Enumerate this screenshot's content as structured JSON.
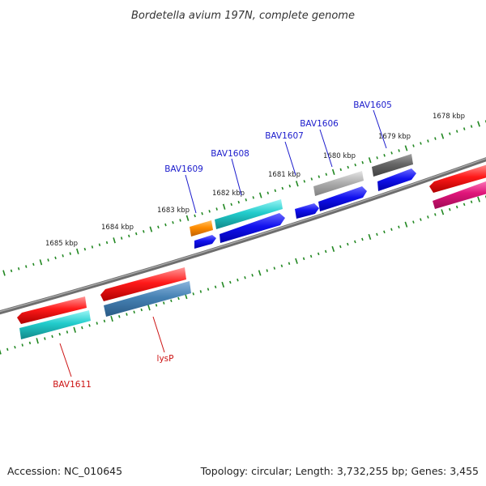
{
  "map": {
    "title": "Bordetella avium 197N, complete genome",
    "accession": "Accession: NC_010645",
    "summary": "Topology: circular; Length: 3,732,255 bp; Genes: 3,455"
  },
  "colors": {
    "backbone": "#7a7a7a",
    "tick": "#228822",
    "forward_label": "#1a1acc",
    "reverse_label": "#cc1111",
    "red": "#ee1111",
    "cyan": "#22cccc",
    "blue": "#1111ee",
    "orange": "#ff8c00",
    "gray": "#aaaaaa",
    "darkgray": "#666666",
    "steelblue": "#4682b4",
    "pink": "#e0157a"
  },
  "tick_labels": [
    "1685 kbp",
    "1684 kbp",
    "1683 kbp",
    "1682 kbp",
    "1681 kbp",
    "1680 kbp",
    "1679 kbp",
    "1678 kbp"
  ],
  "gene_labels": {
    "BAV1605": "BAV1605",
    "BAV1606": "BAV1606",
    "BAV1607": "BAV1607",
    "BAV1608": "BAV1608",
    "BAV1609": "BAV1609",
    "BAV1611": "BAV1611",
    "lysP": "lysP"
  }
}
